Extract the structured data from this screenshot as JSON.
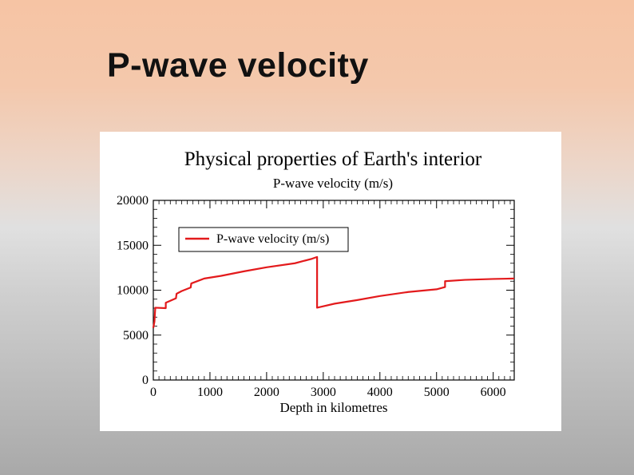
{
  "slide": {
    "title": "P-wave velocity"
  },
  "chart_data": {
    "type": "line",
    "title": "Physical properties of Earth's interior",
    "subtitle": "P-wave velocity (m/s)",
    "xlabel": "Depth in kilometres",
    "ylabel": "",
    "xlim": [
      0,
      6371
    ],
    "ylim": [
      0,
      20000
    ],
    "x_ticks": [
      0,
      1000,
      2000,
      3000,
      4000,
      5000,
      6000
    ],
    "y_ticks": [
      0,
      5000,
      10000,
      15000,
      20000
    ],
    "grid": false,
    "legend": {
      "position": "top-left",
      "entries": [
        "P-wave velocity (m/s)"
      ]
    },
    "series": [
      {
        "name": "P-wave velocity (m/s)",
        "color": "#e31a1c",
        "points": [
          [
            0,
            5800
          ],
          [
            20,
            6500
          ],
          [
            35,
            8050
          ],
          [
            220,
            8000
          ],
          [
            220,
            8600
          ],
          [
            400,
            9100
          ],
          [
            410,
            9600
          ],
          [
            500,
            9900
          ],
          [
            660,
            10300
          ],
          [
            670,
            10750
          ],
          [
            900,
            11300
          ],
          [
            1200,
            11600
          ],
          [
            1600,
            12100
          ],
          [
            2000,
            12550
          ],
          [
            2500,
            13000
          ],
          [
            2800,
            13500
          ],
          [
            2891,
            13700
          ],
          [
            2891,
            8050
          ],
          [
            3200,
            8500
          ],
          [
            3600,
            8900
          ],
          [
            4000,
            9350
          ],
          [
            4500,
            9800
          ],
          [
            5000,
            10100
          ],
          [
            5150,
            10350
          ],
          [
            5150,
            11000
          ],
          [
            5500,
            11150
          ],
          [
            6000,
            11250
          ],
          [
            6371,
            11300
          ]
        ]
      }
    ]
  }
}
